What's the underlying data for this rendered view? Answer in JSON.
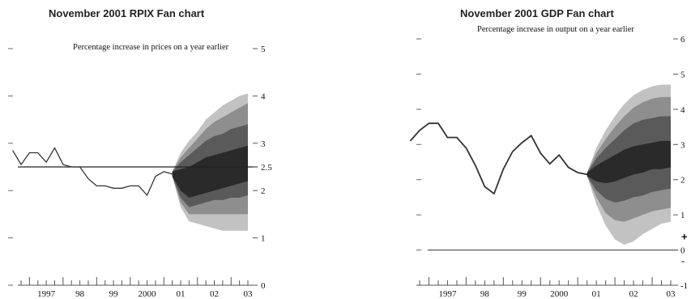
{
  "chart_data": [
    {
      "type": "line",
      "title": "November 2001 RPIX Fan chart",
      "subtitle": "Percentage increase in prices on a year earlier",
      "ylim": [
        0,
        5
      ],
      "yticks": [
        "0",
        "1",
        "2",
        "2.5",
        "3",
        "4",
        "5"
      ],
      "xticks": [
        "1997",
        "98",
        "99",
        "2000",
        "01",
        "02",
        "03"
      ],
      "target": 2.5,
      "series": [
        {
          "x": [
            1996.5,
            1996.75,
            1997.0,
            1997.25,
            1997.5,
            1997.75,
            1998.0,
            1998.25,
            1998.5,
            1998.75,
            1999.0,
            1999.25,
            1999.5,
            1999.75,
            2000.0,
            2000.25,
            2000.5,
            2000.75,
            2001.0,
            2001.25
          ],
          "values": [
            2.85,
            2.55,
            2.8,
            2.8,
            2.6,
            2.9,
            2.55,
            2.5,
            2.5,
            2.25,
            2.1,
            2.1,
            2.05,
            2.05,
            2.1,
            2.1,
            1.9,
            2.3,
            2.4,
            2.35
          ]
        }
      ],
      "fan": {
        "x": [
          2001.25,
          2001.5,
          2001.75,
          2002.0,
          2002.25,
          2002.5,
          2002.75,
          2003.0,
          2003.25,
          2003.5
        ],
        "bands": [
          {
            "lower": [
              2.3,
              2.0,
              1.85,
              1.9,
              1.95,
              2.0,
              2.05,
              2.1,
              2.15,
              2.2
            ],
            "upper": [
              2.4,
              2.45,
              2.5,
              2.6,
              2.7,
              2.75,
              2.8,
              2.85,
              2.9,
              2.95
            ]
          },
          {
            "lower": [
              2.3,
              1.85,
              1.65,
              1.7,
              1.75,
              1.8,
              1.8,
              1.85,
              1.85,
              1.9
            ],
            "upper": [
              2.4,
              2.6,
              2.75,
              2.9,
              3.05,
              3.15,
              3.2,
              3.3,
              3.35,
              3.4
            ]
          },
          {
            "lower": [
              2.3,
              1.75,
              1.5,
              1.5,
              1.5,
              1.5,
              1.5,
              1.5,
              1.5,
              1.5
            ],
            "upper": [
              2.4,
              2.7,
              2.9,
              3.1,
              3.3,
              3.45,
              3.55,
              3.65,
              3.75,
              3.85
            ]
          },
          {
            "lower": [
              2.3,
              1.65,
              1.35,
              1.3,
              1.25,
              1.2,
              1.15,
              1.15,
              1.15,
              1.15
            ],
            "upper": [
              2.4,
              2.8,
              3.05,
              3.25,
              3.5,
              3.65,
              3.8,
              3.9,
              4.0,
              4.05
            ]
          }
        ]
      }
    },
    {
      "type": "line",
      "title": "November 2001 GDP Fan chart",
      "subtitle": "Percentage increase in output on a year earlier",
      "ylim": [
        -1,
        6
      ],
      "yticks": [
        "-1",
        "0",
        "1",
        "2",
        "3",
        "4",
        "5",
        "6"
      ],
      "xticks": [
        "1997",
        "98",
        "99",
        "2000",
        "01",
        "02",
        "03"
      ],
      "plus_minus": [
        "+",
        "-"
      ],
      "series": [
        {
          "x": [
            1996.5,
            1996.75,
            1997.0,
            1997.25,
            1997.5,
            1997.75,
            1998.0,
            1998.25,
            1998.5,
            1998.75,
            1999.0,
            1999.25,
            1999.5,
            1999.75,
            2000.0,
            2000.25,
            2000.5,
            2000.75,
            2001.0,
            2001.25
          ],
          "values": [
            3.1,
            3.4,
            3.6,
            3.6,
            3.2,
            3.2,
            2.9,
            2.4,
            1.8,
            1.6,
            2.3,
            2.8,
            3.05,
            3.25,
            2.75,
            2.45,
            2.7,
            2.35,
            2.2,
            2.15
          ]
        }
      ],
      "fan": {
        "x": [
          2001.25,
          2001.5,
          2001.75,
          2002.0,
          2002.25,
          2002.5,
          2002.75,
          2003.0,
          2003.25,
          2003.5
        ],
        "bands": [
          {
            "lower": [
              2.1,
              1.95,
              1.9,
              1.95,
              2.05,
              2.15,
              2.2,
              2.3,
              2.3,
              2.35
            ],
            "upper": [
              2.2,
              2.4,
              2.55,
              2.7,
              2.85,
              2.95,
              3.0,
              3.05,
              3.1,
              3.1
            ]
          },
          {
            "lower": [
              2.1,
              1.7,
              1.45,
              1.35,
              1.4,
              1.5,
              1.55,
              1.65,
              1.7,
              1.75
            ],
            "upper": [
              2.2,
              2.6,
              2.9,
              3.15,
              3.4,
              3.6,
              3.7,
              3.75,
              3.8,
              3.8
            ]
          },
          {
            "lower": [
              2.1,
              1.5,
              1.05,
              0.85,
              0.8,
              0.9,
              1.0,
              1.1,
              1.15,
              1.2
            ],
            "upper": [
              2.2,
              2.75,
              3.15,
              3.5,
              3.8,
              4.05,
              4.2,
              4.3,
              4.35,
              4.35
            ]
          },
          {
            "lower": [
              2.1,
              1.3,
              0.7,
              0.3,
              0.15,
              0.25,
              0.45,
              0.6,
              0.75,
              0.8
            ],
            "upper": [
              2.2,
              2.9,
              3.4,
              3.8,
              4.15,
              4.4,
              4.55,
              4.65,
              4.7,
              4.7
            ]
          }
        ]
      }
    }
  ]
}
